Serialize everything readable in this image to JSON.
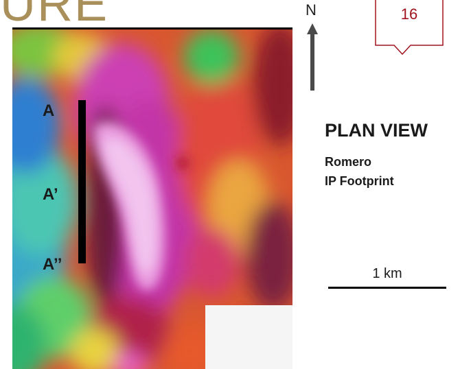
{
  "header": {
    "partial_title": "URE"
  },
  "slide_number": "16",
  "north_label": "N",
  "plan": {
    "title": "PLAN VIEW",
    "project": "Romero",
    "subject": "IP Footprint"
  },
  "section_labels": [
    "A",
    "A’",
    "A’’"
  ],
  "scale": {
    "label": "1 km"
  },
  "colors": {
    "header_text": "#a98f5a",
    "callout_border": "#a0141e",
    "callout_number": "#a0141e"
  },
  "icons": {
    "north_arrow": "north-arrow-icon",
    "callout": "speech-callout-icon"
  }
}
